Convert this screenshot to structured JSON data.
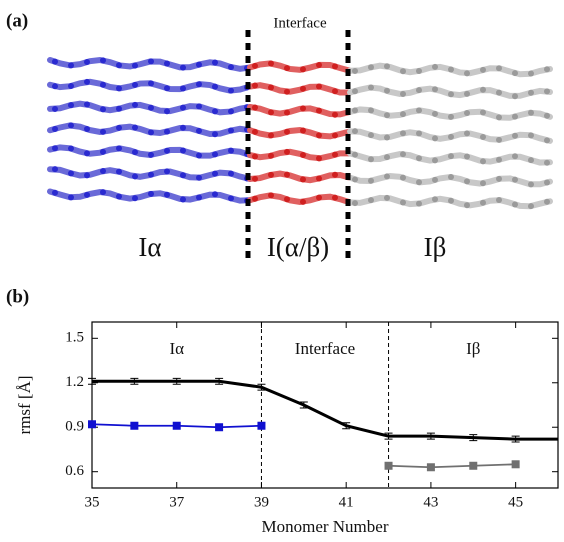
{
  "panel_a": {
    "label": "(a)",
    "interface_label": "Interface",
    "regions": [
      "Iα",
      "I(α/β)",
      "Iβ"
    ]
  },
  "panel_b": {
    "label": "(b)"
  },
  "chart_data": {
    "type": "line",
    "xlabel": "Monomer Number",
    "ylabel": "rmsf [Å]",
    "xlim": [
      35,
      46
    ],
    "ylim": [
      0.49,
      1.61
    ],
    "xticks": [
      35,
      37,
      39,
      41,
      43,
      45
    ],
    "yticks": [
      0.6,
      0.9,
      1.2,
      1.5
    ],
    "region_labels": [
      "Iα",
      "Interface",
      "Iβ"
    ],
    "dividers": [
      39,
      42
    ],
    "series": [
      {
        "x": [
          35,
          36,
          37,
          38,
          39,
          40,
          41,
          42,
          43,
          44,
          45,
          46
        ],
        "values": [
          1.21,
          1.21,
          1.21,
          1.21,
          1.17,
          1.05,
          0.91,
          0.84,
          0.84,
          0.83,
          0.82,
          0.82
        ],
        "errors": [
          0.02,
          0.02,
          0.02,
          0.02,
          0.02,
          0.02,
          0.02,
          0.02,
          0.02,
          0.02,
          0.02,
          0.02
        ],
        "color": "#000000"
      },
      {
        "x": [
          35,
          36,
          37,
          38,
          39
        ],
        "values": [
          0.92,
          0.91,
          0.91,
          0.9,
          0.91
        ],
        "color": "#1010d0"
      },
      {
        "x": [
          42,
          43,
          44,
          45
        ],
        "values": [
          0.64,
          0.63,
          0.64,
          0.65
        ],
        "color": "#707070"
      }
    ]
  }
}
